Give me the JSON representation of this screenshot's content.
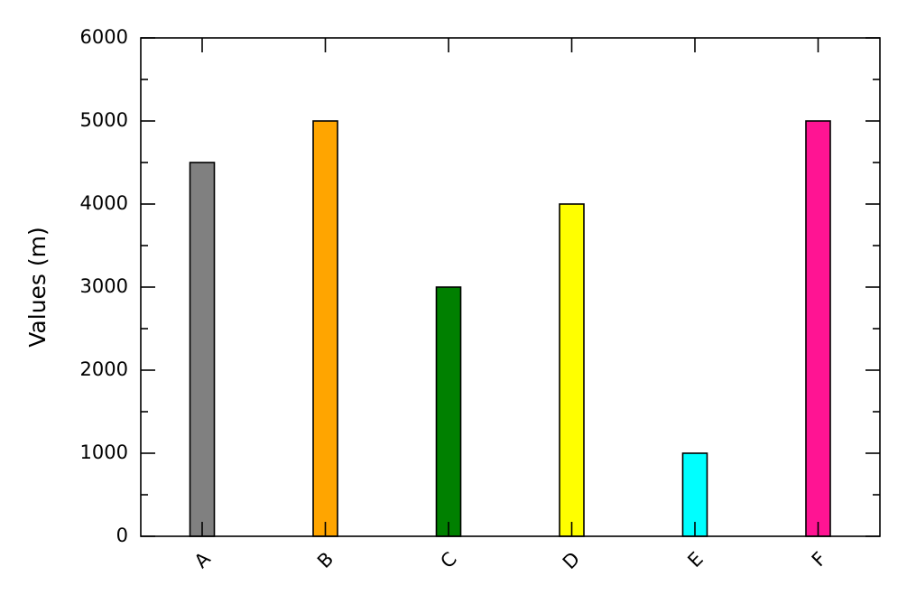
{
  "chart_data": {
    "type": "bar",
    "categories": [
      "A",
      "B",
      "C",
      "D",
      "E",
      "F"
    ],
    "values": [
      4500,
      5000,
      3000,
      4000,
      1000,
      5000
    ],
    "colors": [
      "#808080",
      "#ffa500",
      "#008000",
      "#ffff00",
      "#00ffff",
      "#ff1493"
    ],
    "title": "",
    "xlabel": "",
    "ylabel": "Values (m)",
    "ylim": [
      0,
      6000
    ],
    "yticks": [
      0,
      1000,
      2000,
      3000,
      4000,
      5000,
      6000
    ],
    "ytick_labels": [
      "0",
      "1000",
      "2000",
      "3000",
      "4000",
      "5000",
      "6000"
    ],
    "grid": false,
    "legend": "none",
    "xtick_rotation_deg": 45
  }
}
